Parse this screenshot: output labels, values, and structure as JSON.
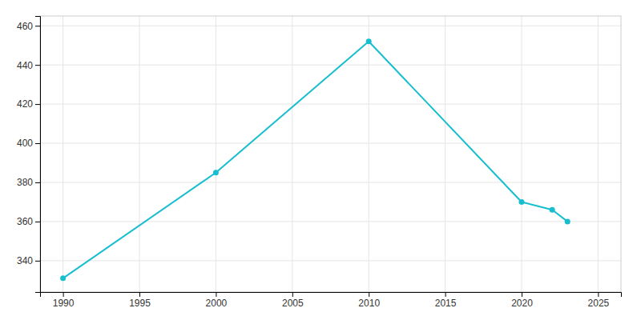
{
  "chart_data": {
    "type": "line",
    "x": [
      1990,
      2000,
      2010,
      2020,
      2022,
      2023
    ],
    "values": [
      331,
      385,
      452,
      370,
      366,
      360
    ],
    "color": "#17BECF",
    "marker": "circle",
    "xlim": [
      1988.5,
      2026.5
    ],
    "ylim": [
      324,
      465
    ],
    "xticks": [
      1990,
      1995,
      2000,
      2005,
      2010,
      2015,
      2020,
      2025
    ],
    "yticks": [
      340,
      360,
      380,
      400,
      420,
      440,
      460
    ],
    "grid": true
  }
}
